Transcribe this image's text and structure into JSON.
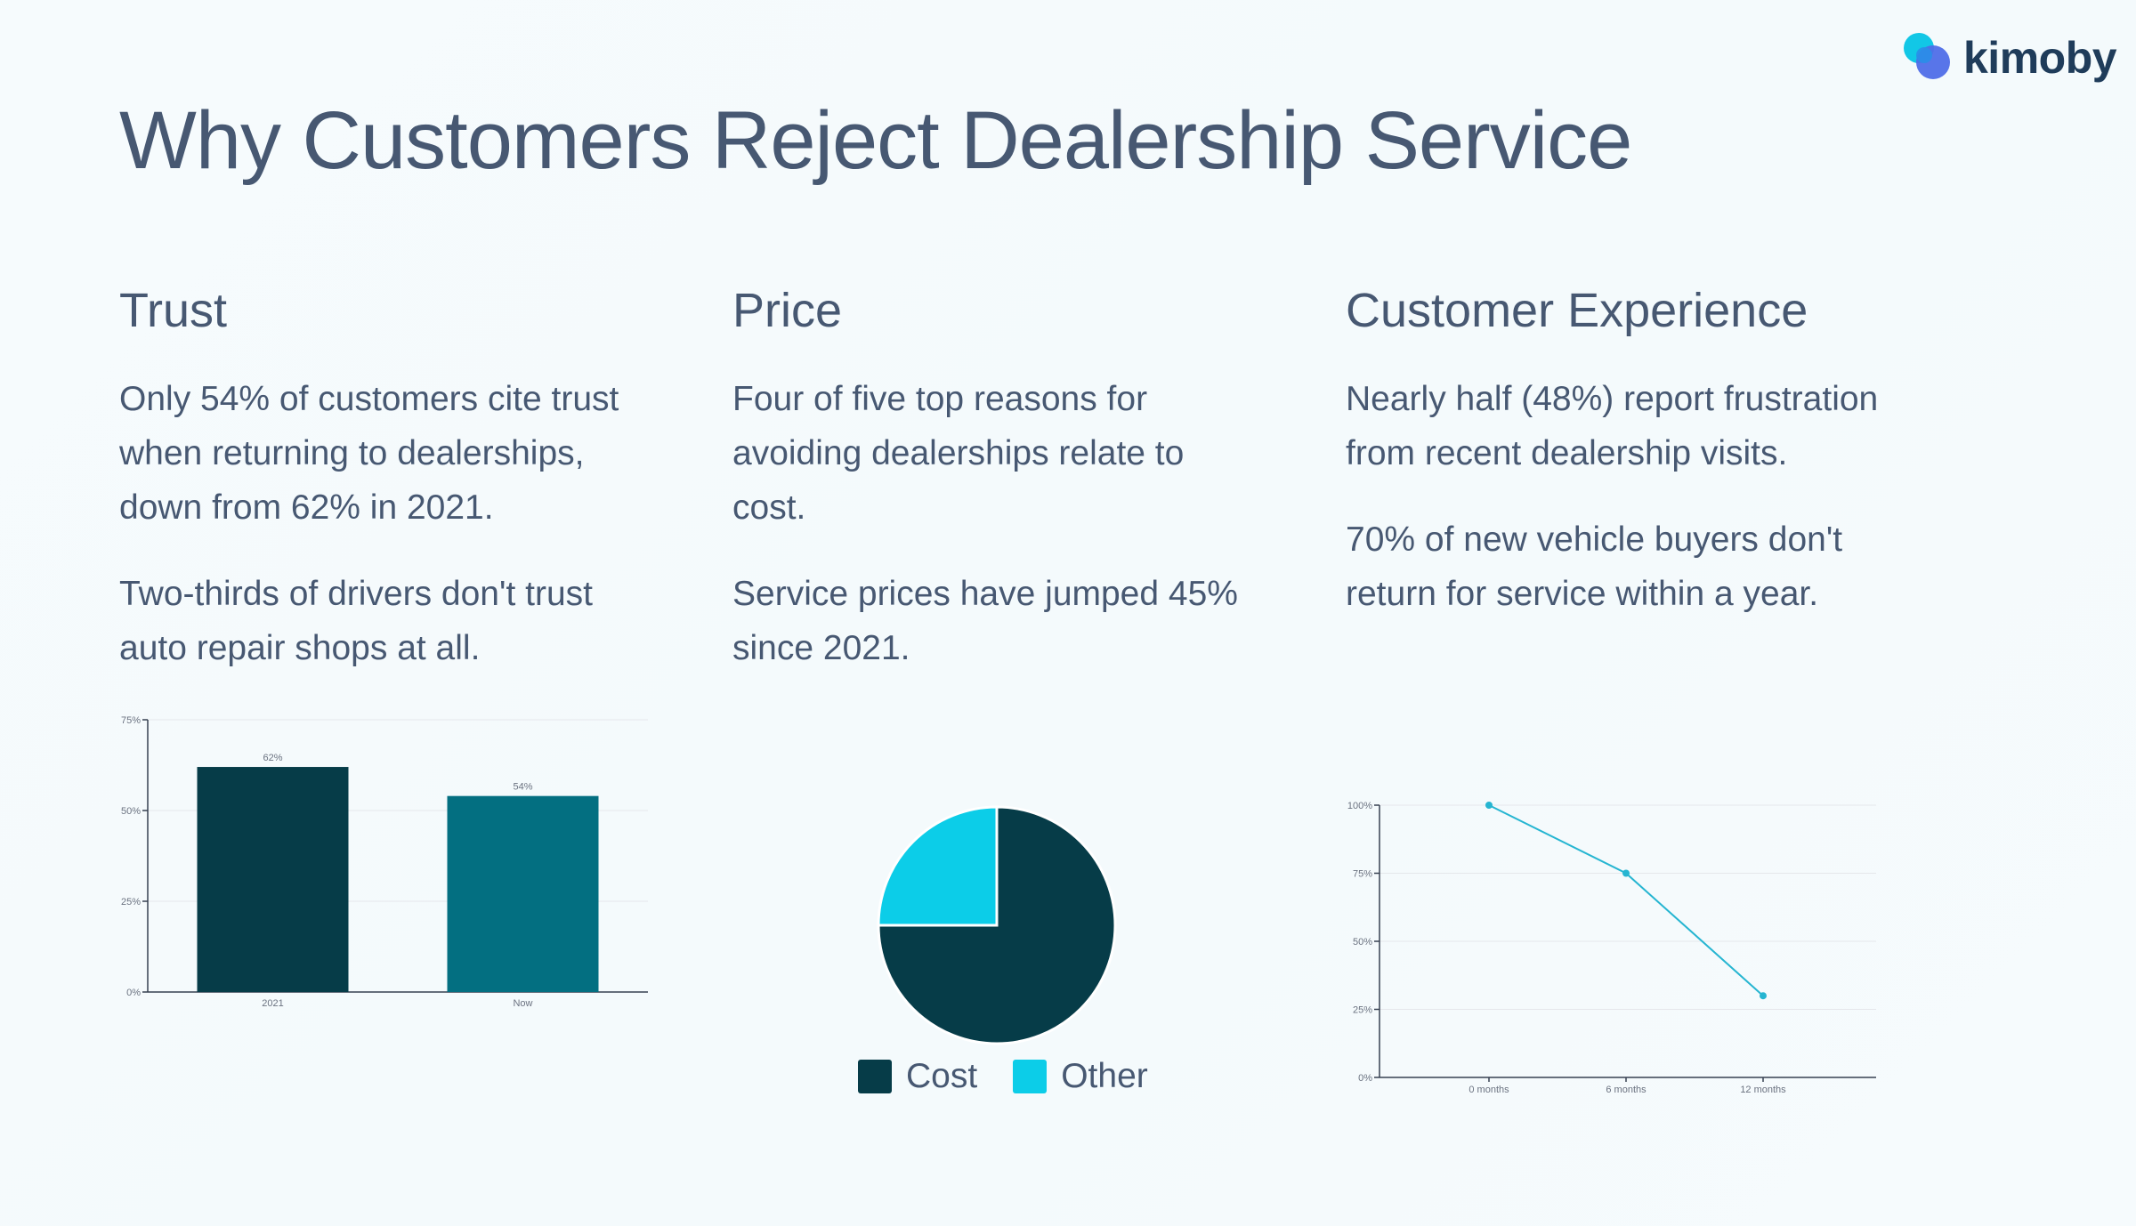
{
  "brand": {
    "name": "kimoby"
  },
  "page": {
    "title": "Why Customers Reject Dealership Service"
  },
  "columns": [
    {
      "heading": "Trust",
      "paragraphs": [
        "Only 54% of customers cite trust when returning to dealerships, down from 62% in 2021.",
        "Two-thirds of drivers don't trust auto repair shops at all."
      ]
    },
    {
      "heading": "Price",
      "paragraphs": [
        "Four of five top reasons for avoiding dealerships relate to cost.",
        "Service prices have jumped 45% since 2021."
      ]
    },
    {
      "heading": "Customer Experience",
      "paragraphs": [
        "Nearly half (48%) report frustration from recent dealership visits.",
        "70% of new vehicle buyers don't return for service within a year."
      ]
    }
  ],
  "chart_data": [
    {
      "type": "bar",
      "categories": [
        "2021",
        "Now"
      ],
      "values": [
        62,
        54
      ],
      "value_labels": [
        "62%",
        "54%"
      ],
      "ylim": [
        0,
        75
      ],
      "y_ticks": [
        0,
        25,
        50,
        75
      ],
      "y_tick_labels": [
        "0%",
        "25%",
        "50%",
        "75%"
      ],
      "colors": [
        "#063c48",
        "#036f81"
      ],
      "grid": true
    },
    {
      "type": "pie",
      "labels": [
        "Cost",
        "Other"
      ],
      "values": [
        75,
        25
      ],
      "colors": [
        "#063c48",
        "#0ccde8"
      ],
      "legend": "bottom"
    },
    {
      "type": "line",
      "categories": [
        "0 months",
        "6 months",
        "12 months"
      ],
      "values": [
        100,
        75,
        30
      ],
      "ylim": [
        0,
        100
      ],
      "y_ticks": [
        0,
        25,
        50,
        75,
        100
      ],
      "y_tick_labels": [
        "0%",
        "25%",
        "50%",
        "75%",
        "100%"
      ],
      "color": "#26b5d1",
      "grid": true
    }
  ]
}
